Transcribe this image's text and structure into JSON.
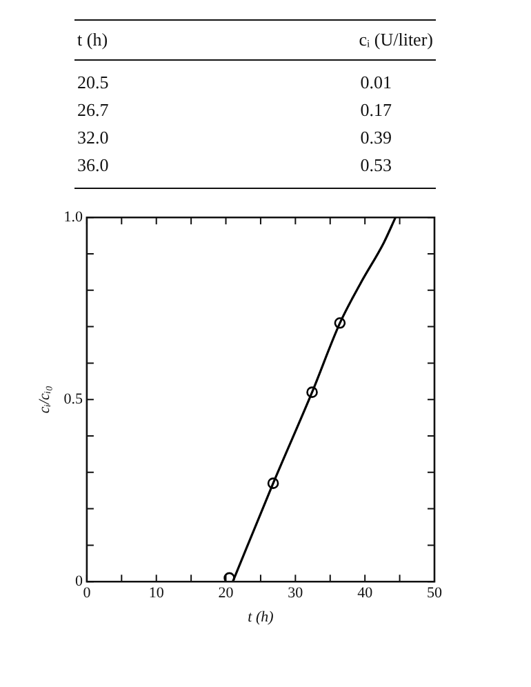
{
  "chart_data": [
    {
      "type": "other",
      "xlabel": "t (h)",
      "ylabel": "cᵢ (U/liter)",
      "categories": [
        "20.5",
        "26.7",
        "32.0",
        "36.0"
      ],
      "values": [
        0.01,
        0.17,
        0.39,
        0.53
      ],
      "data_labels": true
    },
    {
      "type": "scatter",
      "xlabel": "t (h)",
      "ylabel": "cᵢ/cᵢ₀",
      "xlim": [
        0,
        50
      ],
      "ylim": [
        0,
        1
      ],
      "xticks": [
        0,
        {
          "value": 5,
          "label": null
        },
        10,
        {
          "value": 15,
          "label": null
        },
        20,
        {
          "value": 25,
          "label": null
        },
        30,
        {
          "value": 35,
          "label": null
        },
        40,
        {
          "value": 45,
          "label": null
        },
        50
      ],
      "yticks": [
        0,
        {
          "value": 0.1,
          "label": null
        },
        {
          "value": 0.2,
          "label": null
        },
        {
          "value": 0.3,
          "label": null
        },
        {
          "value": 0.4,
          "label": null
        },
        0.5,
        {
          "value": 0.6,
          "label": null
        },
        {
          "value": 0.7,
          "label": null
        },
        {
          "value": 0.8,
          "label": null
        },
        {
          "value": 0.9,
          "label": null
        },
        {
          "value": 1,
          "label": "1.0"
        }
      ],
      "grid": false,
      "legend": false,
      "marker": "circle",
      "series": [
        {
          "type": "line",
          "marker": "none",
          "color": "#000000",
          "x": [
            21,
            26.8,
            32.4,
            36.4,
            39.4,
            42.7,
            44.4
          ],
          "values": [
            0,
            0.27,
            0.52,
            0.71,
            0.82,
            0.93,
            1
          ]
        },
        {
          "type": "scatter",
          "color": "#000000",
          "x": [
            20.5,
            26.8,
            32.4,
            36.4
          ],
          "values": [
            0.01,
            0.27,
            0.52,
            0.71
          ]
        }
      ]
    }
  ]
}
